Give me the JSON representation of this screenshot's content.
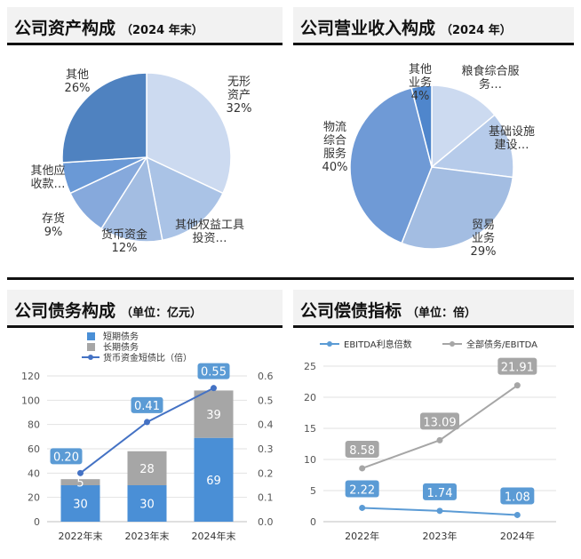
{
  "panels": {
    "assets": {
      "title": "公司资产构成",
      "subtitle": "（2024 年末）"
    },
    "revenue": {
      "title": "公司营业收入构成",
      "subtitle": "（2024 年）"
    },
    "debt": {
      "title": "公司债务构成",
      "subtitle": "（单位：亿元）"
    },
    "solvency": {
      "title": "公司偿债指标",
      "subtitle": "（单位：倍）"
    }
  },
  "chart_data": [
    {
      "type": "pie",
      "title": "公司资产构成（2024 年末）",
      "slices": [
        {
          "label": [
            "无形",
            "资产",
            "32%"
          ],
          "value": 32,
          "color": "#ccdaf0"
        },
        {
          "label": [
            "其他权益工具",
            "投资…"
          ],
          "value": 15,
          "color": "#aac3e6"
        },
        {
          "label": [
            "货币资金",
            "12%"
          ],
          "value": 12,
          "color": "#a3bde2"
        },
        {
          "label": [
            "存货",
            "9%"
          ],
          "value": 9,
          "color": "#86a9dc"
        },
        {
          "label": [
            "其他应",
            "收款…"
          ],
          "value": 6,
          "color": "#6a99d6"
        },
        {
          "label": [
            "其他",
            "26%"
          ],
          "value": 26,
          "color": "#4f82c0"
        }
      ]
    },
    {
      "type": "pie",
      "title": "公司营业收入构成（2024 年）",
      "slices": [
        {
          "label": [
            "粮食综合服",
            "务…"
          ],
          "value": 14,
          "color": "#ccdaf0"
        },
        {
          "label": [
            "基础设施",
            "建设…"
          ],
          "value": 13,
          "color": "#b6cbea"
        },
        {
          "label": [
            "贸易",
            "业务",
            "29%"
          ],
          "value": 29,
          "color": "#a3bde2"
        },
        {
          "label": [
            "物流",
            "综合",
            "服务",
            "40%"
          ],
          "value": 40,
          "color": "#6f9ad6"
        },
        {
          "label": [
            "其他",
            "业务",
            "4%"
          ],
          "value": 4,
          "color": "#4f86cc"
        }
      ]
    },
    {
      "type": "bar",
      "title": "公司债务构成（单位：亿元）",
      "categories": [
        "2022年末",
        "2023年末",
        "2024年末"
      ],
      "series": [
        {
          "name": "短期债务",
          "values": [
            30,
            30,
            69
          ],
          "color": "#4a8fd6",
          "stack": true
        },
        {
          "name": "长期债务",
          "values": [
            5,
            28,
            39
          ],
          "color": "#a6a6a6",
          "stack": true
        },
        {
          "name": "货币资金短债比（倍）",
          "values": [
            0.2,
            0.41,
            0.55
          ],
          "color": "#4472c4",
          "type": "line",
          "axis": "right"
        }
      ],
      "ylim": [
        0,
        120
      ],
      "yticks": [
        0,
        20,
        40,
        60,
        80,
        100,
        120
      ],
      "y2lim": [
        0,
        0.6
      ],
      "y2ticks": [
        "0.0",
        "0.1",
        "0.2",
        "0.3",
        "0.4",
        "0.5",
        "0.6"
      ],
      "line_labels": [
        "0.20",
        "0.41",
        "0.55"
      ],
      "legend": "top"
    },
    {
      "type": "line",
      "title": "公司偿债指标（单位：倍）",
      "categories": [
        "2022年",
        "2023年",
        "2024年"
      ],
      "series": [
        {
          "name": "EBITDA利息倍数",
          "values": [
            2.22,
            1.74,
            1.08
          ],
          "labels": [
            "2.22",
            "1.74",
            "1.08"
          ],
          "color": "#5b9bd5"
        },
        {
          "name": "全部债务/EBITDA",
          "values": [
            8.58,
            13.09,
            21.91
          ],
          "labels": [
            "8.58",
            "13.09",
            "21.91"
          ],
          "color": "#a6a6a6"
        }
      ],
      "ylim": [
        0,
        25
      ],
      "yticks": [
        0,
        5,
        10,
        15,
        20,
        25
      ],
      "legend": "top"
    }
  ]
}
